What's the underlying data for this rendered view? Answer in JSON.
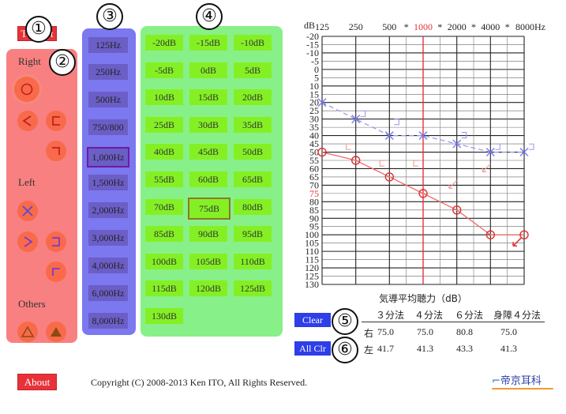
{
  "header": {
    "to_start_label": "To Start"
  },
  "markers": {
    "m1": "①",
    "m2": "②",
    "m3": "③",
    "m4": "④",
    "m5": "⑤",
    "m6": "⑥"
  },
  "sidebar": {
    "right_label": "Right",
    "left_label": "Left",
    "others_label": "Others"
  },
  "frequencies": [
    "125Hz",
    "250Hz",
    "500Hz",
    "750/800",
    "1,000Hz",
    "1,500Hz",
    "2,000Hz",
    "3,000Hz",
    "4,000Hz",
    "6,000Hz",
    "8,000Hz"
  ],
  "selected_frequency": "1,000Hz",
  "db_values": [
    "-20dB",
    "-15dB",
    "-10dB",
    "-5dB",
    "0dB",
    "5dB",
    "10dB",
    "15dB",
    "20dB",
    "25dB",
    "30dB",
    "35dB",
    "40dB",
    "45dB",
    "50dB",
    "55dB",
    "60dB",
    "65dB",
    "70dB",
    "75dB",
    "80dB",
    "85dB",
    "90dB",
    "95dB",
    "100dB",
    "105dB",
    "110dB",
    "115dB",
    "120dB",
    "125dB",
    "130dB"
  ],
  "selected_db": "75dB",
  "chart": {
    "y_unit": "dB",
    "x_ticks": [
      "125",
      "250",
      "500",
      "*",
      "1000",
      "*",
      "2000",
      "*",
      "4000",
      "*",
      "8000Hz"
    ],
    "y_ticks": [
      "-20",
      "-15",
      "-10",
      "-5",
      "0",
      "5",
      "10",
      "15",
      "20",
      "25",
      "30",
      "35",
      "40",
      "45",
      "50",
      "55",
      "60",
      "65",
      "70",
      "75",
      "80",
      "85",
      "90",
      "95",
      "100",
      "105",
      "110",
      "115",
      "120",
      "125",
      "130"
    ],
    "xlabel": "気導平均聴力（dB）",
    "highlight_color": "#e8323a",
    "right_color": "#f07070",
    "left_color": "#9a9af0"
  },
  "chart_data": {
    "type": "line",
    "x": [
      "125",
      "250",
      "500",
      "1000",
      "2000",
      "4000",
      "8000"
    ],
    "ylim": [
      -20,
      130
    ],
    "y_inverted": true,
    "series": [
      {
        "values": [
          50,
          55,
          65,
          75,
          85,
          100,
          100
        ]
      },
      {
        "values": [
          20,
          30,
          40,
          40,
          45,
          50,
          50
        ]
      }
    ]
  },
  "buttons": {
    "clear_label": "Clear",
    "all_clr_label": "All Clr",
    "about_label": "About"
  },
  "results": {
    "headers": [
      "３分法",
      "４分法",
      "６分法",
      "身障４分法"
    ],
    "rows": [
      {
        "side": "右",
        "values": [
          "75.0",
          "75.0",
          "80.8",
          "75.0"
        ]
      },
      {
        "side": "左",
        "values": [
          "41.7",
          "41.3",
          "43.3",
          "41.3"
        ]
      }
    ]
  },
  "footer": {
    "copyright": "Copyright (C) 2008-2013 Ken ITO, All Rights Reserved.",
    "logo_text": "帝京耳科"
  }
}
